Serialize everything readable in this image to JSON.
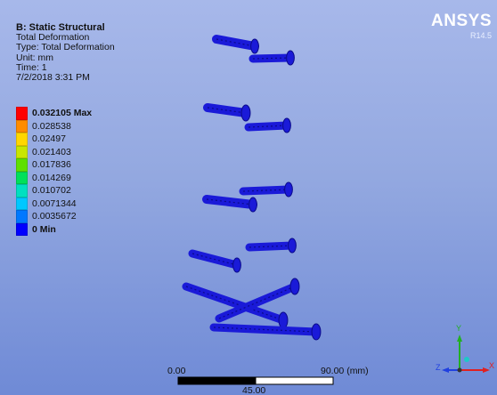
{
  "info": {
    "title": "B: Static Structural",
    "result": "Total Deformation",
    "type": "Type: Total Deformation",
    "unit": "Unit: mm",
    "time": "Time: 1",
    "date": "7/2/2018 3:31 PM"
  },
  "logo": {
    "brand": "ANSYS",
    "version": "R14.5"
  },
  "legend": [
    {
      "label": "0.032105 Max",
      "color": "#ff0000",
      "bold": true
    },
    {
      "label": "0.028538",
      "color": "#ff8c00",
      "bold": false
    },
    {
      "label": "0.02497",
      "color": "#ffd700",
      "bold": false
    },
    {
      "label": "0.021403",
      "color": "#c8e600",
      "bold": false
    },
    {
      "label": "0.017836",
      "color": "#5fe000",
      "bold": false
    },
    {
      "label": "0.014269",
      "color": "#00e05a",
      "bold": false
    },
    {
      "label": "0.010702",
      "color": "#00e0c0",
      "bold": false
    },
    {
      "label": "0.0071344",
      "color": "#00c8ff",
      "bold": false
    },
    {
      "label": "0.0035672",
      "color": "#0078ff",
      "bold": false
    },
    {
      "label": "0 Min",
      "color": "#0000ff",
      "bold": true
    }
  ],
  "scale": {
    "start": "0.00",
    "mid": "45.00",
    "end": "90.00 (mm)"
  },
  "triad": {
    "x": "X",
    "y": "Y",
    "z": "Z"
  },
  "colors": {
    "model": "#1a1ad8",
    "model_dark": "#0a0a8a"
  }
}
